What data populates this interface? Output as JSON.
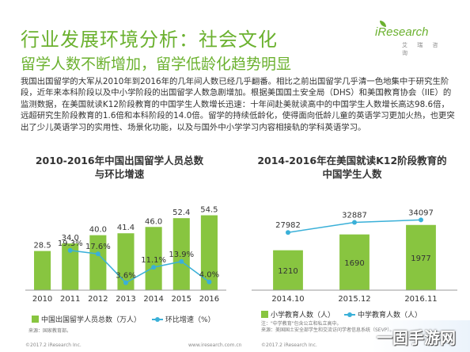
{
  "header": {
    "title": "行业发展环境分析：社会文化",
    "subtitle": "留学人数不断增加，留学低龄化趋势明显"
  },
  "logo": {
    "brand": "iResearch",
    "brand_sub": "艾 瑞 咨 询"
  },
  "paragraph": "我国出国留学的大军从2010年到2016年的几年间人数已经几乎翻番。相比之前出国留学几乎清一色地集中于研究生阶段，近年来本科阶段以及中小学阶段的出国留学人数急剧增加。根据美国国土安全局（DHS）和美国教育协会（IIE）的监测数据，在美国就读K12阶段教育的中国学生人数增长迅速：十年间赴美就读高中的中国学生人数增长高达98.6倍，远超研究生阶段教育的1.6倍和本科阶段的14.0倍。留学的持续低龄化，使得面向低龄儿童的英语学习更加火热，也更突出了少儿英语学习的实用性、场景化功能，以及与国外中小学学习内容相接轨的学科英语学习。",
  "chart_data": [
    {
      "type": "bar",
      "title_line1": "2010-2016年中国出国留学人员总数",
      "title_line2": "与环比增速",
      "categories": [
        "2010",
        "2011",
        "2012",
        "2013",
        "2014",
        "2015",
        "2016"
      ],
      "series": [
        {
          "name": "中国出国留学人员总数（万人）",
          "type": "bar",
          "values": [
            28.5,
            34.0,
            40.0,
            41.4,
            46.0,
            52.4,
            54.5
          ],
          "labels": [
            "28.5",
            "34.0",
            "40.0",
            "41.4",
            "46.0",
            "52.4",
            "54.5"
          ],
          "color": "#88c540"
        },
        {
          "name": "环比增速（%）",
          "type": "line",
          "values": [
            null,
            19.3,
            17.6,
            3.6,
            11.1,
            13.9,
            4.0
          ],
          "labels": [
            "",
            "19.3%",
            "17.6%",
            "3.6%",
            "11.1%",
            "13.9%",
            "4.0%"
          ],
          "color": "#3ab0d8"
        }
      ],
      "ylim": [
        0,
        60
      ],
      "line_ylim": [
        0,
        40
      ],
      "legend_position": "bottom",
      "source": "来源：国家教育部。"
    },
    {
      "type": "bar",
      "title_line1": "2014-2016年在美国就读K12阶段教育的",
      "title_line2": "中国学生人数",
      "categories": [
        "2014.10",
        "2015.12",
        "2016.11"
      ],
      "series": [
        {
          "name": "小学教育人数（人）",
          "type": "bar",
          "values": [
            1210,
            1690,
            1977
          ],
          "labels": [
            "1210",
            "1690",
            "1977"
          ],
          "color": "#88c540"
        },
        {
          "name": "中学教育人数（人）",
          "type": "line",
          "values": [
            27982,
            32887,
            34097
          ],
          "labels": [
            "27982",
            "32887",
            "34097"
          ],
          "color": "#3ab0d8"
        }
      ],
      "ylim": [
        0,
        2500
      ],
      "line_ylim": [
        0,
        40000
      ],
      "legend_position": "bottom",
      "source_line1": "注：\"中学教育\"包含公立和私立高中。",
      "source_line2": "来源：美国国土安全部学生和交流访问学者信息系统（SEVP）。"
    }
  ],
  "footer": {
    "copyright_left": "©2017.2 iResearch Inc.",
    "site": "www.iresearch.com.cn",
    "copyright_right": "©2017.2 iResearch Inc."
  },
  "watermark": "一固手游网"
}
